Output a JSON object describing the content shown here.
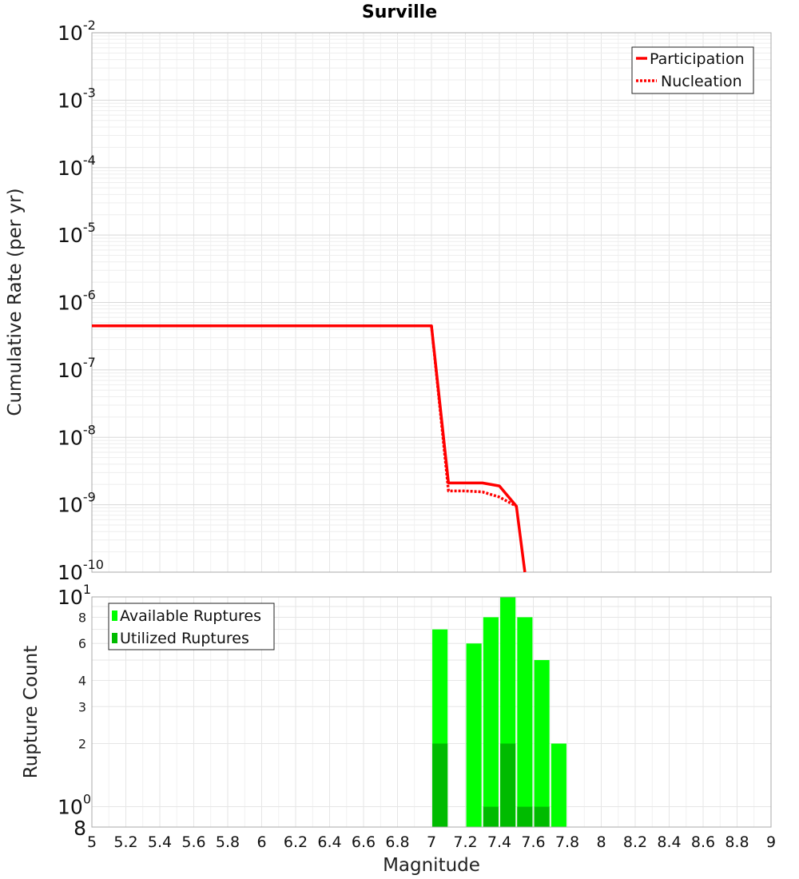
{
  "chart_data": [
    {
      "type": "line",
      "title": "Surville",
      "ylabel": "Cumulative Rate (per yr)",
      "xlim": [
        5,
        9
      ],
      "ylim": [
        1e-10,
        0.01
      ],
      "yscale": "log",
      "grid": true,
      "legend_position": "top-right",
      "y_decades": [
        {
          "base": "10",
          "exp": "-10"
        },
        {
          "base": "10",
          "exp": "-9"
        },
        {
          "base": "10",
          "exp": "-8"
        },
        {
          "base": "10",
          "exp": "-7"
        },
        {
          "base": "10",
          "exp": "-6"
        },
        {
          "base": "10",
          "exp": "-5"
        },
        {
          "base": "10",
          "exp": "-4"
        },
        {
          "base": "10",
          "exp": "-3"
        },
        {
          "base": "10",
          "exp": "-2"
        }
      ],
      "series": [
        {
          "name": "Participation",
          "style": "solid",
          "color": "#ff0000",
          "x": [
            5.0,
            7.0,
            7.1,
            7.2,
            7.3,
            7.4,
            7.5,
            7.55
          ],
          "y": [
            4.5e-07,
            4.5e-07,
            2.1e-09,
            2.1e-09,
            2.1e-09,
            1.9e-09,
            9.5e-10,
            1e-10
          ]
        },
        {
          "name": "Nucleation",
          "style": "dotted",
          "color": "#ff0000",
          "x": [
            5.0,
            7.0,
            7.1,
            7.2,
            7.3,
            7.4,
            7.5
          ],
          "y": [
            4.5e-07,
            4.5e-07,
            1.6e-09,
            1.6e-09,
            1.55e-09,
            1.3e-09,
            9.5e-10
          ]
        }
      ]
    },
    {
      "type": "bar",
      "xlabel": "Magnitude",
      "ylabel": "Rupture Count",
      "xlim": [
        5,
        9
      ],
      "ylim": [
        0.8,
        10
      ],
      "yscale": "log",
      "grid": true,
      "legend_position": "top-left",
      "x_ticks": [
        "5",
        "5.2",
        "5.4",
        "5.6",
        "5.8",
        "6",
        "6.2",
        "6.4",
        "6.6",
        "6.8",
        "7",
        "7.2",
        "7.4",
        "7.6",
        "7.8",
        "8",
        "8.2",
        "8.4",
        "8.6",
        "8.8",
        "9"
      ],
      "y_decades": [
        {
          "base": "10",
          "exp": "0"
        },
        {
          "base": "10",
          "exp": "1"
        }
      ],
      "y_minor_ticks": [
        "2",
        "3",
        "4",
        "6",
        "8"
      ],
      "y_bottom_label": "8",
      "bar_width": 0.09,
      "series": [
        {
          "name": "Available Ruptures",
          "color": "#00ff00",
          "x": [
            7.05,
            7.25,
            7.35,
            7.45,
            7.55,
            7.65,
            7.75
          ],
          "values": [
            7,
            6,
            8,
            10,
            8,
            5,
            2
          ]
        },
        {
          "name": "Utilized Ruptures",
          "color": "#00bb00",
          "x": [
            7.05,
            7.35,
            7.45,
            7.55,
            7.65
          ],
          "values": [
            2,
            1,
            2,
            1,
            1
          ]
        }
      ]
    }
  ]
}
